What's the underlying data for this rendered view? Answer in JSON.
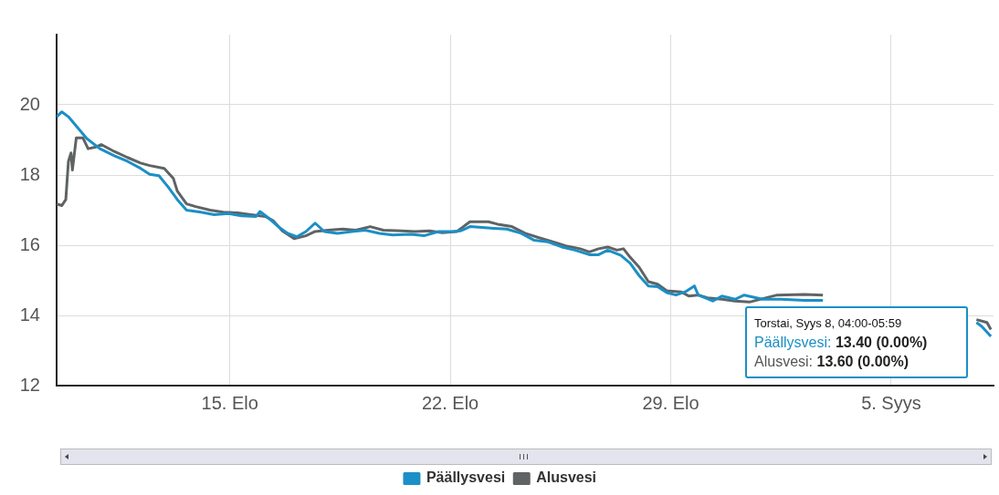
{
  "chart_data": {
    "type": "line",
    "xlim": [
      "--08-09T12:00",
      "--09-08T06:00"
    ],
    "xticks": [
      {
        "value": "--08-15",
        "label": "15. Elo"
      },
      {
        "value": "--08-22",
        "label": "22. Elo"
      },
      {
        "value": "--08-29",
        "label": "29. Elo"
      },
      {
        "value": "--09-05",
        "label": "5. Syys"
      }
    ],
    "ylim": [
      12,
      22
    ],
    "yticks": [
      12,
      14,
      16,
      18,
      20
    ],
    "grid": true,
    "legend": "bottom",
    "marker": "none",
    "line_style": "solid",
    "annotations": [
      "Torstai, Syys 8, 04:00-05:59",
      "Päällysvesi: 13.40 (0.00%)",
      "Alusvesi: 13.60 (0.00%)"
    ],
    "series": [
      {
        "name": "Päällysvesi",
        "color": "#1b8fc6",
        "x": [
          "--08-09T12:00",
          "--08-09T16:00",
          "--08-09T21:00",
          "--08-10T04:00",
          "--08-10T11:00",
          "--08-10T21:00",
          "--08-11T08:00",
          "--08-11T18:00",
          "--08-12T04:00",
          "--08-12T11:00",
          "--08-12T18:00",
          "--08-13T01:00",
          "--08-13T08:00",
          "--08-13T15:00",
          "--08-14T02:00",
          "--08-14T12:00",
          "--08-14T23:00",
          "--08-15T09:00",
          "--08-15T20:00",
          "--08-15T23:00",
          "--08-16T04:00",
          "--08-16T13:00",
          "--08-16T20:00",
          "--08-17T03:00",
          "--08-17T10:00",
          "--08-17T17:00",
          "--08-18T00:00",
          "--08-18T10:00",
          "--08-18T21:00",
          "--08-19T07:00",
          "--08-19T18:00",
          "--08-20T04:00",
          "--08-20T18:00",
          "--08-21T04:00",
          "--08-21T15:00",
          "--08-22T01:00",
          "--08-22T08:00",
          "--08-22T15:00",
          "--08-22T22:00",
          "--08-23T09:00",
          "--08-23T19:00",
          "--08-24T06:00",
          "--08-24T16:00",
          "--08-25T02:00",
          "--08-25T13:00",
          "--08-25T23:00",
          "--08-26T10:00",
          "--08-26T17:00",
          "--08-27T00:00",
          "--08-27T10:00",
          "--08-27T17:00",
          "--08-28T00:00",
          "--08-28T07:00",
          "--08-28T14:00",
          "--08-28T21:00",
          "--08-29T04:00",
          "--08-29T11:00",
          "--08-29T18:00",
          "--08-29T21:00",
          "--08-30T08:00",
          "--08-30T15:00",
          "--08-31T01:00",
          "--08-31T08:00",
          "--08-31T22:00",
          "--09-01T12:00",
          "--09-02T06:00",
          "--09-02T20:00",
          "--09-05T00:00",
          "--09-07T17:00",
          "--09-07T21:00",
          "--09-08T04:00"
        ],
        "values": [
          19.66,
          19.8,
          19.66,
          19.35,
          19.04,
          18.75,
          18.55,
          18.39,
          18.19,
          18.02,
          17.98,
          17.66,
          17.3,
          17.0,
          16.94,
          16.87,
          16.9,
          16.84,
          16.82,
          16.96,
          16.82,
          16.53,
          16.34,
          16.24,
          16.39,
          16.63,
          16.39,
          16.34,
          16.39,
          16.43,
          16.34,
          16.29,
          16.31,
          16.27,
          16.39,
          16.39,
          16.41,
          16.53,
          16.51,
          16.48,
          16.46,
          16.34,
          16.14,
          16.1,
          15.95,
          15.86,
          15.73,
          15.73,
          15.86,
          15.71,
          15.49,
          15.13,
          14.84,
          14.82,
          14.65,
          14.58,
          14.67,
          14.84,
          14.58,
          14.41,
          14.55,
          14.46,
          14.58,
          14.46,
          14.46,
          14.43,
          14.43,
          null,
          13.8,
          13.69,
          13.4
        ]
      },
      {
        "name": "Alusvesi",
        "color": "#5f6364",
        "x": [
          "--08-09T12:00",
          "--08-09T16:00",
          "--08-09T19:00",
          "--08-09T21:00",
          "--08-09T23:00",
          "--08-10T00:00",
          "--08-10T03:00",
          "--08-10T08:00",
          "--08-10T12:00",
          "--08-10T18:00",
          "--08-10T22:00",
          "--08-11T08:00",
          "--08-11T18:00",
          "--08-12T04:00",
          "--08-12T11:00",
          "--08-12T22:00",
          "--08-13T05:00",
          "--08-13T08:00",
          "--08-13T15:00",
          "--08-13T22:00",
          "--08-14T09:00",
          "--08-14T19:00",
          "--08-15T06:00",
          "--08-15T16:00",
          "--08-16T03:00",
          "--08-16T09:00",
          "--08-16T16:00",
          "--08-17T01:00",
          "--08-17T10:00",
          "--08-17T17:00",
          "--08-18T03:00",
          "--08-18T14:00",
          "--08-19T00:00",
          "--08-19T11:00",
          "--08-19T21:00",
          "--08-20T11:00",
          "--08-20T21:00",
          "--08-21T08:00",
          "--08-21T18:00",
          "--08-22T05:00",
          "--08-22T10:00",
          "--08-22T15:00",
          "--08-23T05:00",
          "--08-23T12:00",
          "--08-23T23:00",
          "--08-24T09:00",
          "--08-24T19:00",
          "--08-25T06:00",
          "--08-25T16:00",
          "--08-26T03:00",
          "--08-26T10:00",
          "--08-26T17:00",
          "--08-27T00:00",
          "--08-27T07:00",
          "--08-27T12:00",
          "--08-27T17:00",
          "--08-28T00:00",
          "--08-28T07:00",
          "--08-28T14:00",
          "--08-28T21:00",
          "--08-29T08:00",
          "--08-29T14:00",
          "--08-29T21:00",
          "--08-30T04:00",
          "--08-30T15:00",
          "--08-31T01:00",
          "--08-31T12:00",
          "--09-01T09:00",
          "--09-02T06:00",
          "--09-02T20:00",
          "--09-05T00:00",
          "--09-07T17:00",
          "--09-08T01:00",
          "--09-08T04:00"
        ],
        "values": [
          17.18,
          17.13,
          17.3,
          18.39,
          18.63,
          18.14,
          19.06,
          19.06,
          18.75,
          18.8,
          18.87,
          18.67,
          18.5,
          18.34,
          18.27,
          18.19,
          17.9,
          17.54,
          17.18,
          17.1,
          17.0,
          16.94,
          16.92,
          16.87,
          16.82,
          16.7,
          16.41,
          16.19,
          16.27,
          16.39,
          16.43,
          16.46,
          16.43,
          16.53,
          16.43,
          16.41,
          16.39,
          16.41,
          16.36,
          16.39,
          16.53,
          16.67,
          16.67,
          16.6,
          16.53,
          16.34,
          16.22,
          16.1,
          15.98,
          15.9,
          15.81,
          15.9,
          15.95,
          15.86,
          15.9,
          15.66,
          15.37,
          14.96,
          14.89,
          14.7,
          14.67,
          14.55,
          14.58,
          14.5,
          14.46,
          14.41,
          14.38,
          14.58,
          14.6,
          14.58,
          null,
          13.88,
          13.8,
          13.6
        ]
      }
    ]
  }
}
